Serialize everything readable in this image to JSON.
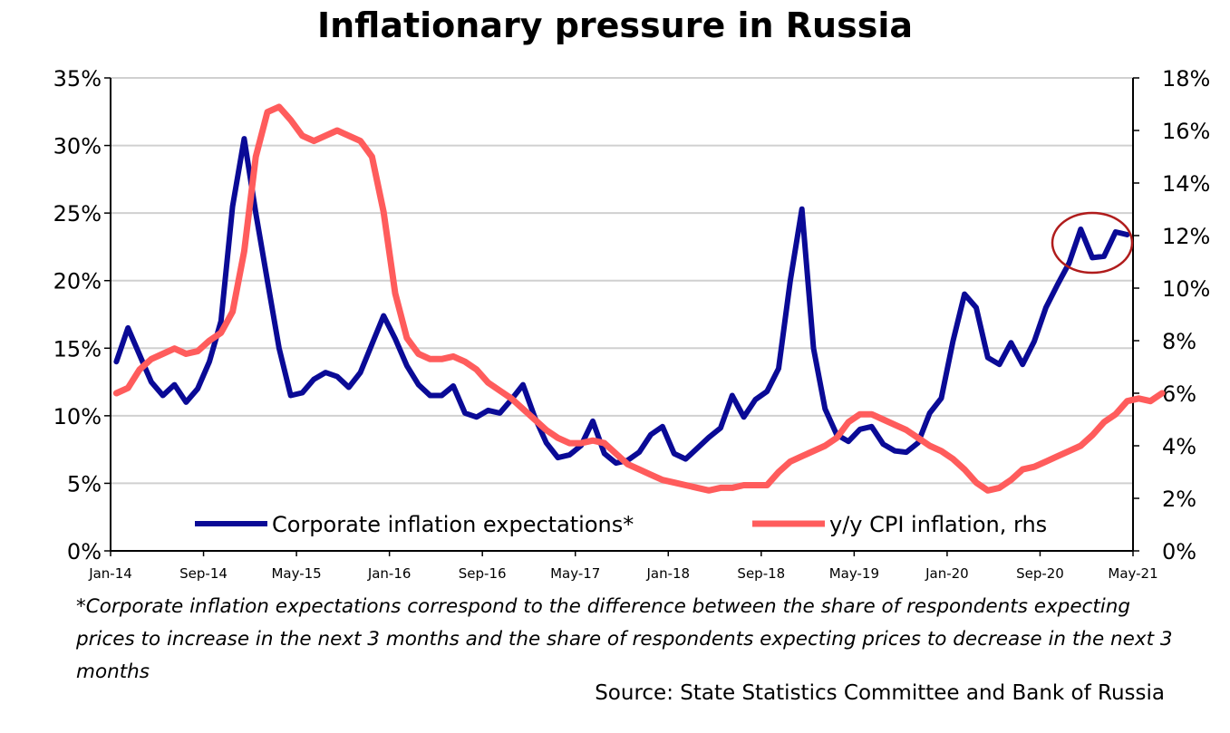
{
  "chart_data": {
    "type": "line",
    "title": "Inflationary pressure in Russia",
    "left_axis": {
      "ylim": [
        0,
        35
      ],
      "ticks": [
        "0%",
        "5%",
        "10%",
        "15%",
        "20%",
        "25%",
        "30%",
        "35%"
      ]
    },
    "right_axis": {
      "ylim": [
        0,
        18
      ],
      "ticks": [
        "0%",
        "2%",
        "4%",
        "6%",
        "8%",
        "10%",
        "12%",
        "14%",
        "16%",
        "18%"
      ]
    },
    "x_ticks": [
      "Jan-14",
      "Sep-14",
      "May-15",
      "Jan-16",
      "Sep-16",
      "May-17",
      "Jan-18",
      "Sep-18",
      "May-19",
      "Jan-20",
      "Sep-20",
      "May-21"
    ],
    "x_start": "2014-01",
    "grid": "horizontal",
    "legend_position": "bottom",
    "series": [
      {
        "name": "Corporate inflation expectations*",
        "axis": "left",
        "color": "#0a0a96",
        "values": [
          14,
          16.5,
          14.5,
          12.5,
          11.5,
          12.3,
          11.0,
          12.0,
          14.0,
          17.0,
          25.5,
          30.5,
          25,
          20,
          15,
          11.5,
          11.7,
          12.7,
          13.2,
          12.9,
          12.1,
          13.2,
          15.3,
          17.4,
          15.7,
          13.7,
          12.3,
          11.5,
          11.5,
          12.2,
          10.2,
          9.9,
          10.4,
          10.2,
          11.2,
          12.3,
          9.9,
          8,
          6.9,
          7.1,
          7.8,
          9.6,
          7.2,
          6.5,
          6.7,
          7.3,
          8.6,
          9.2,
          7.2,
          6.8,
          7.6,
          8.4,
          9.1,
          11.5,
          9.9,
          11.2,
          11.8,
          13.5,
          20,
          25.3,
          15,
          10.5,
          8.6,
          8.1,
          9,
          9.2,
          7.9,
          7.4,
          7.3,
          8,
          10.2,
          11.3,
          15.5,
          19,
          18,
          14.3,
          13.8,
          15.4,
          13.8,
          15.5,
          18,
          19.7,
          21.3,
          23.8,
          21.7,
          21.8,
          23.6,
          23.4
        ]
      },
      {
        "name": "y/y CPI inflation, rhs",
        "axis": "right",
        "color": "#ff5c5c",
        "values": [
          6.0,
          6.2,
          6.9,
          7.3,
          7.5,
          7.7,
          7.5,
          7.6,
          8.0,
          8.3,
          9.1,
          11.4,
          15.0,
          16.7,
          16.9,
          16.4,
          15.8,
          15.6,
          15.8,
          16.0,
          15.8,
          15.6,
          15.0,
          12.9,
          9.8,
          8.1,
          7.5,
          7.3,
          7.3,
          7.4,
          7.2,
          6.9,
          6.4,
          6.1,
          5.8,
          5.4,
          5.0,
          4.6,
          4.3,
          4.1,
          4.1,
          4.2,
          4.1,
          3.7,
          3.3,
          3.1,
          2.9,
          2.7,
          2.6,
          2.5,
          2.4,
          2.3,
          2.4,
          2.4,
          2.5,
          2.5,
          2.5,
          3.0,
          3.4,
          3.6,
          3.8,
          4.0,
          4.3,
          4.9,
          5.2,
          5.2,
          5.0,
          4.8,
          4.6,
          4.3,
          4.0,
          3.8,
          3.5,
          3.1,
          2.6,
          2.3,
          2.4,
          2.7,
          3.1,
          3.2,
          3.4,
          3.6,
          3.8,
          4.0,
          4.4,
          4.9,
          5.2,
          5.7,
          5.8,
          5.7,
          6.0
        ]
      }
    ]
  },
  "footnote": "*Corporate inflation expectations correspond to the difference between the share of respondents expecting prices to increase in the next 3 months and the share of respondents expecting prices to decrease in the next 3 months",
  "source": "Source: State Statistics Committee and Bank of Russia"
}
